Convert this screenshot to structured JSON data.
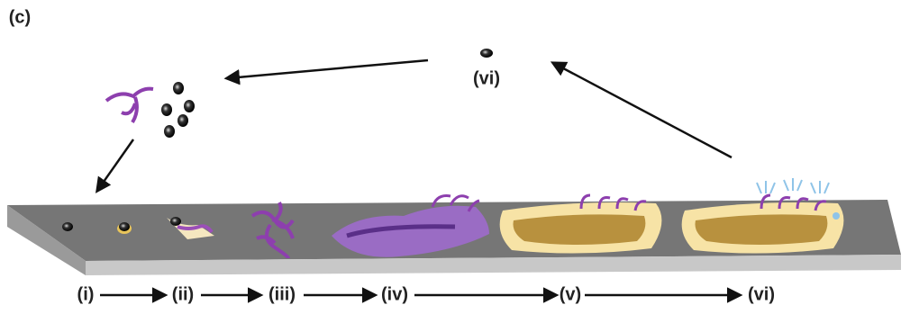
{
  "panel_label": "(c)",
  "dispersal_label": "(vi)",
  "stages": [
    {
      "label": "(i)"
    },
    {
      "label": "(ii)"
    },
    {
      "label": "(iii)"
    },
    {
      "label": "(iv)"
    },
    {
      "label": "(v)"
    },
    {
      "label": "(vi)"
    }
  ]
}
